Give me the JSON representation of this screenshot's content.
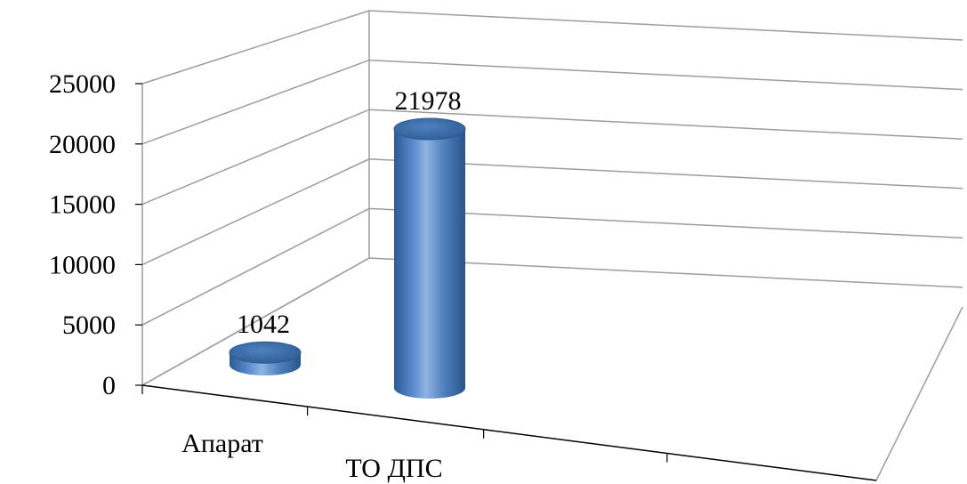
{
  "chart_data": {
    "type": "bar",
    "style": "3d-cylinder",
    "categories": [
      "Апарат",
      "ТО ДПС"
    ],
    "values": [
      1042,
      21978
    ],
    "data_labels": [
      "1042",
      "21978"
    ],
    "yticks": [
      "0",
      "5000",
      "10000",
      "15000",
      "20000",
      "25000"
    ],
    "ylim": [
      0,
      25000
    ],
    "title": "",
    "xlabel": "",
    "ylabel": "",
    "grid": true,
    "legend": "none",
    "bar_color": "#4f81bd",
    "bar_color_dark": "#2c5a94",
    "bar_color_light": "#8fb3e2",
    "grid_color": "#9c9c9c"
  }
}
